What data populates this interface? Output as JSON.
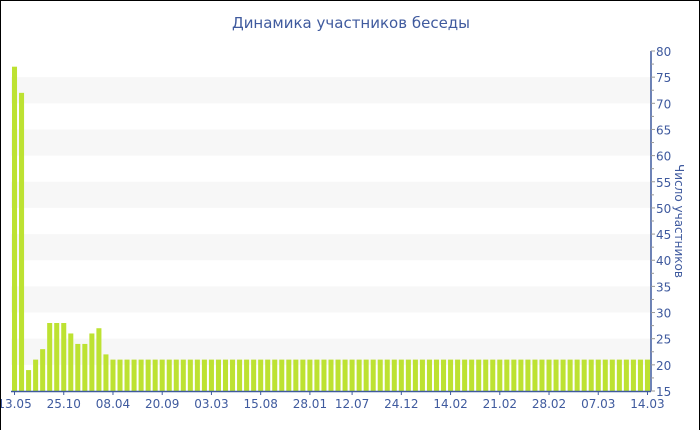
{
  "chart_data": {
    "type": "bar",
    "title": "Динамика участников беседы",
    "ylabel": "Число участников",
    "xlabel": "",
    "ylim": [
      15,
      80
    ],
    "yticks": [
      15,
      20,
      25,
      30,
      35,
      40,
      45,
      50,
      55,
      60,
      65,
      70,
      75,
      80
    ],
    "y_axis_side": "right",
    "grid": "alternating horizontal bands",
    "x_tick_labels": [
      "13.05",
      "25.10",
      "08.04",
      "20.09",
      "03.03",
      "15.08",
      "28.01",
      "12.07",
      "24.12",
      "14.02",
      "21.02",
      "28.02",
      "07.03",
      "14.03"
    ],
    "values": [
      77,
      72,
      19,
      21,
      23,
      28,
      28,
      28,
      26,
      24,
      24,
      26,
      27,
      22,
      21,
      21,
      21,
      21,
      21,
      21,
      21,
      21,
      21,
      21,
      21,
      21,
      21,
      21,
      21,
      21,
      21,
      21,
      21,
      21,
      21,
      21,
      21,
      21,
      21,
      21,
      21,
      21,
      21,
      21,
      21,
      21,
      21,
      21,
      21,
      21,
      21,
      21,
      21,
      21,
      21,
      21,
      21,
      21,
      21,
      21,
      21,
      21,
      21,
      21,
      21,
      21,
      21,
      21,
      21,
      21,
      21,
      21,
      21,
      21,
      21,
      21,
      21,
      21,
      21,
      21,
      21,
      21,
      21,
      21,
      21,
      21,
      21,
      21,
      21,
      21,
      21
    ],
    "colors": {
      "bar": "#bde232",
      "axis": "#3f5a9e",
      "band": "#f7f7f7"
    }
  }
}
